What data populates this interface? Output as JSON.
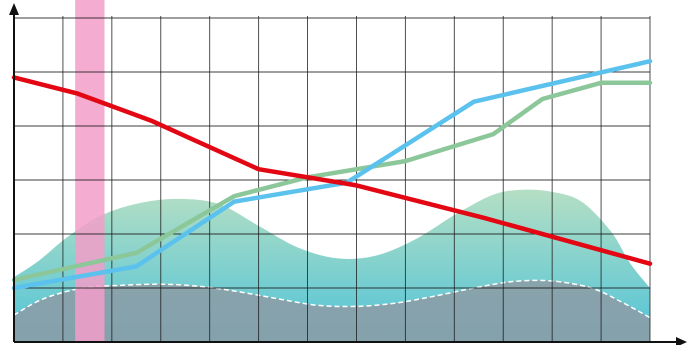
{
  "chart_data": {
    "type": "line",
    "title": "",
    "xlabel": "",
    "ylabel": "",
    "grid": true,
    "legend": "none",
    "xlim": [
      0,
      13
    ],
    "ylim": [
      0,
      6
    ],
    "colors": {
      "red": "#e30613",
      "blue": "#5bc2ee",
      "green": "#8cc79a",
      "pink": "#f29ec8",
      "areaTop": "#b5dfc4",
      "areaBottom": "#4fc3d8",
      "gray": "#8d9ba4",
      "grid": "#1a1a1a",
      "axis": "#111111"
    },
    "series": [
      {
        "key": "red",
        "type": "line",
        "x": [
          0,
          1.3,
          2.8,
          5,
          7,
          9.6,
          13
        ],
        "y": [
          4.9,
          4.6,
          4.1,
          3.2,
          2.9,
          2.3,
          1.45
        ]
      },
      {
        "key": "blue",
        "type": "line",
        "x": [
          0,
          2.5,
          4.5,
          6.8,
          9.4,
          13
        ],
        "y": [
          1.0,
          1.4,
          2.6,
          2.95,
          4.45,
          5.2
        ]
      },
      {
        "key": "green",
        "type": "line",
        "x": [
          0,
          2.5,
          4.5,
          6,
          8,
          9.8,
          10.8,
          12,
          13
        ],
        "y": [
          1.15,
          1.65,
          2.7,
          3.05,
          3.35,
          3.85,
          4.5,
          4.8,
          4.8
        ]
      },
      {
        "key": "area",
        "type": "area",
        "x": [
          0,
          0.5,
          1.1,
          1.8,
          2.6,
          3.4,
          4.2,
          5,
          5.8,
          6.6,
          7.4,
          8.2,
          9,
          9.8,
          10.4,
          11,
          11.6,
          12.2,
          12.6,
          13
        ],
        "y": [
          1.2,
          1.5,
          1.95,
          2.35,
          2.58,
          2.65,
          2.55,
          2.15,
          1.75,
          1.55,
          1.6,
          1.9,
          2.35,
          2.73,
          2.82,
          2.78,
          2.6,
          2.05,
          1.45,
          1.0
        ]
      },
      {
        "key": "gray",
        "type": "area",
        "x": [
          0,
          0.6,
          1.4,
          2.2,
          3.0,
          3.8,
          4.6,
          5.4,
          6.2,
          7.0,
          7.8,
          8.6,
          9.4,
          10.2,
          11.0,
          11.8,
          12.4,
          13
        ],
        "y": [
          0.5,
          0.8,
          1.0,
          1.05,
          1.07,
          1.03,
          0.93,
          0.8,
          0.68,
          0.66,
          0.72,
          0.85,
          1.0,
          1.12,
          1.13,
          1.0,
          0.75,
          0.45
        ]
      },
      {
        "key": "pink",
        "type": "bar",
        "x0": 1.25,
        "x1": 1.85,
        "y": 6.35
      }
    ]
  }
}
